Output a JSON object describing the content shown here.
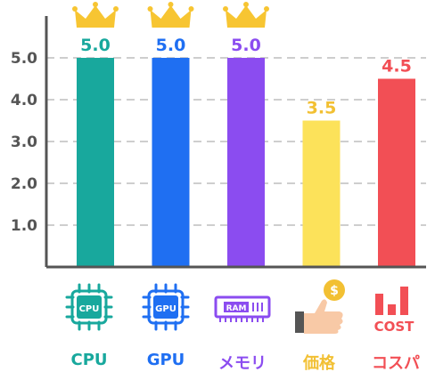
{
  "chart_data": {
    "type": "bar",
    "categories": [
      "CPU",
      "GPU",
      "メモリ",
      "価格",
      "コスパ"
    ],
    "values": [
      5.0,
      5.0,
      5.0,
      3.5,
      4.5
    ],
    "value_labels": [
      "5.0",
      "5.0",
      "5.0",
      "3.5",
      "4.5"
    ],
    "colors": [
      "#18a89d",
      "#1f6ff2",
      "#8b4cf0",
      "#fce25a",
      "#f24f55"
    ],
    "label_colors": [
      "#18a89d",
      "#1f6ff2",
      "#8b4cf0",
      "#f2c033",
      "#f24f55"
    ],
    "crowned": [
      true,
      true,
      true,
      false,
      false
    ],
    "yticks": [
      1.0,
      2.0,
      3.0,
      4.0,
      5.0
    ],
    "ytick_labels": [
      "1.0",
      "2.0",
      "3.0",
      "4.0",
      "5.0"
    ],
    "ylim": [
      0,
      5
    ],
    "grid": true,
    "title": "",
    "xlabel": "",
    "ylabel": ""
  },
  "icons": [
    {
      "name": "cpu-chip-icon",
      "text": "CPU"
    },
    {
      "name": "gpu-chip-icon",
      "text": "GPU"
    },
    {
      "name": "ram-module-icon",
      "text": "RAM"
    },
    {
      "name": "price-hand-coin-icon",
      "text": "$"
    },
    {
      "name": "cost-bar-chart-icon",
      "text": "COST"
    }
  ]
}
